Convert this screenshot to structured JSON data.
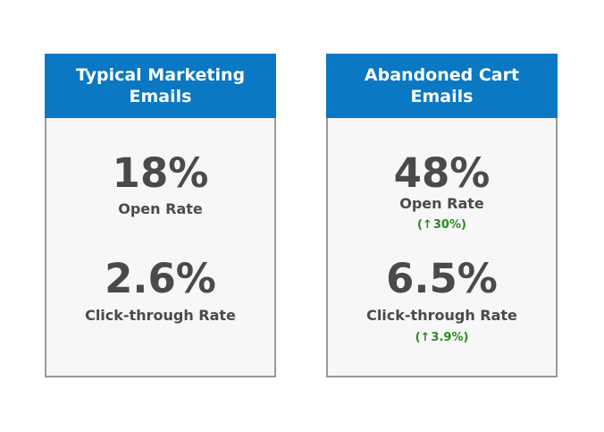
{
  "cards": [
    {
      "title": "Typical Marketing\nEmails",
      "metrics": [
        {
          "value": "18%",
          "label": "Open Rate"
        },
        {
          "value": "2.6%",
          "label": "Click-through Rate"
        }
      ]
    },
    {
      "title": "Abandoned Cart\nEmails",
      "metrics": [
        {
          "value": "48%",
          "label": "Open Rate",
          "change_open": "(",
          "change_arrow": "↑",
          "change_value": "30%)"
        },
        {
          "value": "6.5%",
          "label": "Click-through Rate",
          "change_open": "(",
          "change_arrow": "↑",
          "change_value": "3.9%)"
        }
      ]
    }
  ],
  "colors": {
    "header_bg": "#0a78c2",
    "metric_text": "#4a4a4a",
    "increase": "#2a8a1f",
    "card_border": "#999999"
  },
  "icons": {
    "increase": "arrow-up-icon"
  }
}
